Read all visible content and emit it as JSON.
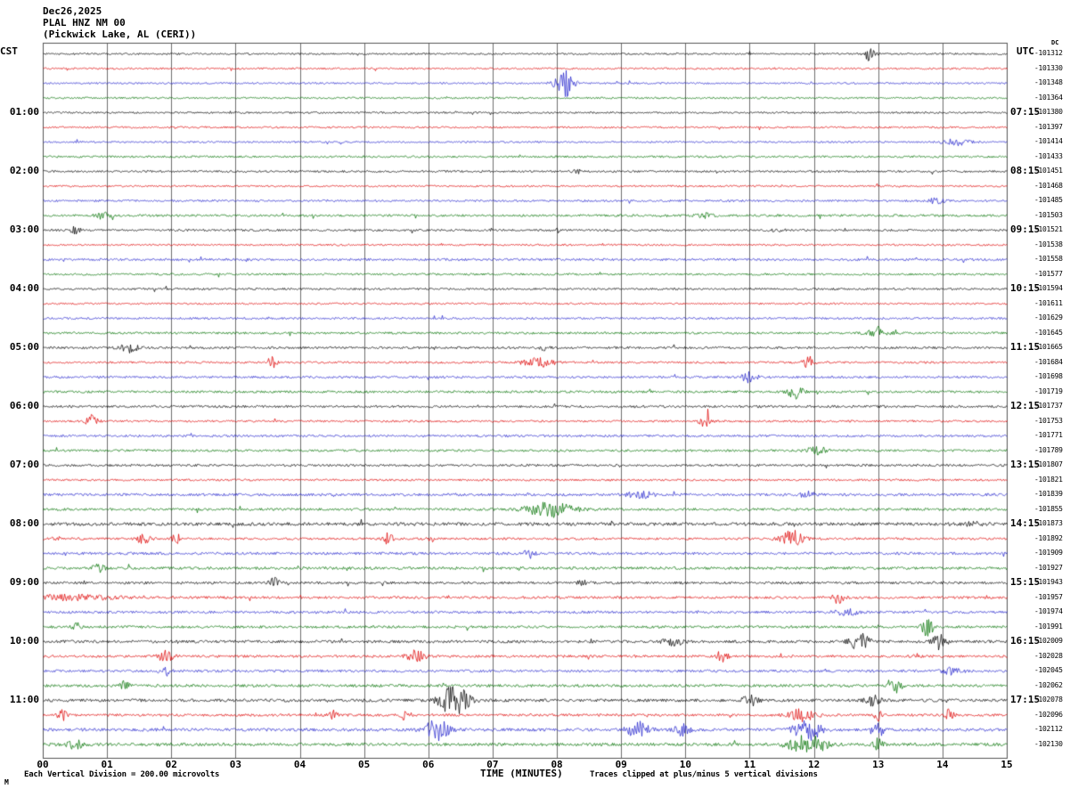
{
  "header": {
    "date": "Dec26,2025",
    "station": "PLAL HNZ NM 00",
    "location": "(Pickwick Lake, AL (CERI))"
  },
  "axes": {
    "left_unit": "CST",
    "right_unit": "UTC",
    "dc_unit": "DC",
    "x_title": "TIME (MINUTES)",
    "x_ticks": [
      "00",
      "01",
      "02",
      "03",
      "04",
      "05",
      "06",
      "07",
      "08",
      "09",
      "10",
      "11",
      "12",
      "13",
      "14",
      "15"
    ]
  },
  "footer": {
    "left": "Each Vertical Division =  200.00 microvolts",
    "right": "Traces clipped at plus/minus 5 vertical divisions",
    "corner": "M"
  },
  "chart_data": {
    "type": "line",
    "subtype": "helicorder-seismogram",
    "title": "PLAL HNZ NM 00 (Pickwick Lake, AL (CERI)) Dec26,2025",
    "xlabel": "TIME (MINUTES)",
    "x_range_minutes": [
      0,
      15
    ],
    "minutes_per_line": 15,
    "lines_per_hour": 4,
    "left_time_zone": "CST",
    "right_time_zone": "UTC",
    "grid": "vertical-every-minute",
    "colors": {
      "black": "#000000",
      "red": "#dd0000",
      "blue": "#2424cc",
      "green": "#007200"
    },
    "color_cycle": [
      "black",
      "red",
      "blue",
      "green"
    ],
    "rows": [
      {
        "dc": "-101312",
        "n": 0.7,
        "ev": [
          [
            12.85,
            5,
            0.06
          ]
        ]
      },
      {
        "dc": "-101330",
        "n": 0.7,
        "ev": []
      },
      {
        "dc": "-101348",
        "n": 0.7,
        "ev": [
          [
            8.1,
            13,
            0.1
          ]
        ]
      },
      {
        "dc": "-101364",
        "n": 0.7,
        "ev": []
      },
      {
        "dc": "-101380",
        "cst": "01:00",
        "utc": "07:15",
        "n": 0.7,
        "ev": []
      },
      {
        "dc": "-101397",
        "n": 0.7,
        "ev": []
      },
      {
        "dc": "-101414",
        "n": 0.7,
        "ev": [
          [
            14.2,
            2.5,
            0.15
          ]
        ]
      },
      {
        "dc": "-101433",
        "n": 0.8,
        "ev": []
      },
      {
        "dc": "-101451",
        "cst": "02:00",
        "utc": "08:15",
        "n": 0.8,
        "ev": [
          [
            8.3,
            1.8,
            0.05
          ]
        ]
      },
      {
        "dc": "-101468",
        "n": 0.7,
        "ev": []
      },
      {
        "dc": "-101485",
        "n": 0.8,
        "ev": [
          [
            13.9,
            2,
            0.1
          ]
        ]
      },
      {
        "dc": "-101503",
        "n": 0.9,
        "ev": [
          [
            0.93,
            2.5,
            0.08
          ],
          [
            10.3,
            1.8,
            0.1
          ]
        ]
      },
      {
        "dc": "-101521",
        "cst": "03:00",
        "utc": "09:15",
        "n": 0.8,
        "ev": [
          [
            0.5,
            3.5,
            0.05
          ],
          [
            8.0,
            1.8,
            0.05
          ],
          [
            11.4,
            1.8,
            0.05
          ]
        ]
      },
      {
        "dc": "-101538",
        "n": 0.7,
        "ev": []
      },
      {
        "dc": "-101558",
        "n": 0.9,
        "ev": []
      },
      {
        "dc": "-101577",
        "n": 0.8,
        "ev": []
      },
      {
        "dc": "-101594",
        "cst": "04:00",
        "utc": "10:15",
        "n": 0.8,
        "ev": []
      },
      {
        "dc": "-101611",
        "n": 0.7,
        "ev": []
      },
      {
        "dc": "-101629",
        "n": 0.8,
        "ev": []
      },
      {
        "dc": "-101645",
        "n": 0.9,
        "ev": [
          [
            13.0,
            4.5,
            0.12
          ]
        ]
      },
      {
        "dc": "-101665",
        "cst": "05:00",
        "utc": "11:15",
        "n": 0.9,
        "ev": [
          [
            1.35,
            3.5,
            0.1
          ],
          [
            7.8,
            1.8,
            0.06
          ]
        ]
      },
      {
        "dc": "-101684",
        "n": 0.8,
        "ev": [
          [
            3.56,
            4.5,
            0.05
          ],
          [
            7.7,
            5,
            0.15
          ],
          [
            11.9,
            6,
            0.06
          ]
        ]
      },
      {
        "dc": "-101698",
        "n": 0.9,
        "ev": [
          [
            11.0,
            5,
            0.08
          ]
        ]
      },
      {
        "dc": "-101719",
        "n": 0.9,
        "ev": [
          [
            11.7,
            5.5,
            0.08
          ]
        ]
      },
      {
        "dc": "-101737",
        "cst": "06:00",
        "utc": "12:15",
        "n": 0.9,
        "ev": []
      },
      {
        "dc": "-101753",
        "n": 0.8,
        "ev": [
          [
            0.76,
            5.5,
            0.06
          ],
          [
            10.3,
            4.5,
            0.06
          ]
        ]
      },
      {
        "dc": "-101771",
        "n": 0.9,
        "ev": []
      },
      {
        "dc": "-101789",
        "n": 0.9,
        "ev": [
          [
            12.05,
            4.5,
            0.1
          ]
        ]
      },
      {
        "dc": "-101807",
        "cst": "07:00",
        "utc": "13:15",
        "n": 0.9,
        "ev": []
      },
      {
        "dc": "-101821",
        "n": 0.8,
        "ev": []
      },
      {
        "dc": "-101839",
        "n": 1.0,
        "ev": [
          [
            9.3,
            2.5,
            0.15
          ],
          [
            11.9,
            2.5,
            0.1
          ]
        ]
      },
      {
        "dc": "-101855",
        "n": 1.0,
        "ev": [
          [
            7.87,
            6,
            0.25
          ]
        ]
      },
      {
        "dc": "-101873",
        "cst": "08:00",
        "utc": "14:15",
        "n": 1.3,
        "ev": [
          [
            14.5,
            2,
            0.1
          ]
        ]
      },
      {
        "dc": "-101892",
        "n": 0.9,
        "ev": [
          [
            0.2,
            2,
            0.05
          ],
          [
            1.55,
            3.5,
            0.08
          ],
          [
            2.07,
            4.5,
            0.05
          ],
          [
            5.37,
            4.5,
            0.05
          ],
          [
            6.05,
            2,
            0.05
          ],
          [
            11.65,
            7,
            0.12
          ]
        ]
      },
      {
        "dc": "-101909",
        "n": 1.0,
        "ev": [
          [
            7.56,
            3.5,
            0.06
          ]
        ]
      },
      {
        "dc": "-101927",
        "n": 1.1,
        "ev": [
          [
            0.86,
            3.5,
            0.06
          ]
        ]
      },
      {
        "dc": "-101943",
        "cst": "09:00",
        "utc": "15:15",
        "n": 1.0,
        "ev": [
          [
            3.6,
            4.5,
            0.05
          ],
          [
            8.4,
            2,
            0.06
          ]
        ]
      },
      {
        "dc": "-101957",
        "n": 1.0,
        "ev": [
          [
            0.5,
            2,
            0.5
          ],
          [
            12.37,
            4.5,
            0.06
          ]
        ]
      },
      {
        "dc": "-101974",
        "n": 1.0,
        "ev": [
          [
            12.5,
            2.5,
            0.12
          ]
        ]
      },
      {
        "dc": "-101991",
        "n": 1.0,
        "ev": [
          [
            0.51,
            3.5,
            0.05
          ],
          [
            13.76,
            8,
            0.06
          ]
        ]
      },
      {
        "dc": "-102009",
        "cst": "10:00",
        "utc": "16:15",
        "n": 1.1,
        "ev": [
          [
            9.8,
            3.5,
            0.1
          ],
          [
            12.7,
            7,
            0.1
          ],
          [
            13.96,
            7,
            0.08
          ]
        ]
      },
      {
        "dc": "-102028",
        "n": 1.0,
        "ev": [
          [
            1.9,
            4.5,
            0.08
          ],
          [
            5.8,
            4.5,
            0.1
          ],
          [
            10.56,
            4.5,
            0.06
          ]
        ]
      },
      {
        "dc": "-102045",
        "n": 1.0,
        "ev": [
          [
            1.9,
            4.5,
            0.06
          ],
          [
            14.15,
            3.5,
            0.1
          ]
        ]
      },
      {
        "dc": "-102062",
        "n": 1.1,
        "ev": [
          [
            1.27,
            3.5,
            0.05
          ],
          [
            13.27,
            5.5,
            0.06
          ]
        ]
      },
      {
        "dc": "-102078",
        "cst": "11:00",
        "utc": "17:15",
        "n": 1.2,
        "ev": [
          [
            6.4,
            13,
            0.15
          ],
          [
            11.0,
            4.5,
            0.08
          ],
          [
            12.9,
            4.5,
            0.08
          ]
        ]
      },
      {
        "dc": "-102096",
        "n": 1.0,
        "ev": [
          [
            0.3,
            4.5,
            0.05
          ],
          [
            4.53,
            3.5,
            0.05
          ],
          [
            5.64,
            4.5,
            0.05
          ],
          [
            11.8,
            4.5,
            0.15
          ],
          [
            13.0,
            4.5,
            0.06
          ],
          [
            14.1,
            4.5,
            0.05
          ]
        ]
      },
      {
        "dc": "-102112",
        "n": 1.2,
        "ev": [
          [
            6.13,
            9,
            0.12
          ],
          [
            9.26,
            6,
            0.12
          ],
          [
            9.95,
            4.5,
            0.08
          ],
          [
            11.9,
            8,
            0.15
          ],
          [
            13.0,
            6,
            0.05
          ]
        ]
      },
      {
        "dc": "-102130",
        "n": 1.2,
        "ev": [
          [
            0.5,
            3.5,
            0.08
          ],
          [
            11.9,
            8,
            0.2
          ],
          [
            13.0,
            5.5,
            0.05
          ]
        ]
      }
    ]
  }
}
